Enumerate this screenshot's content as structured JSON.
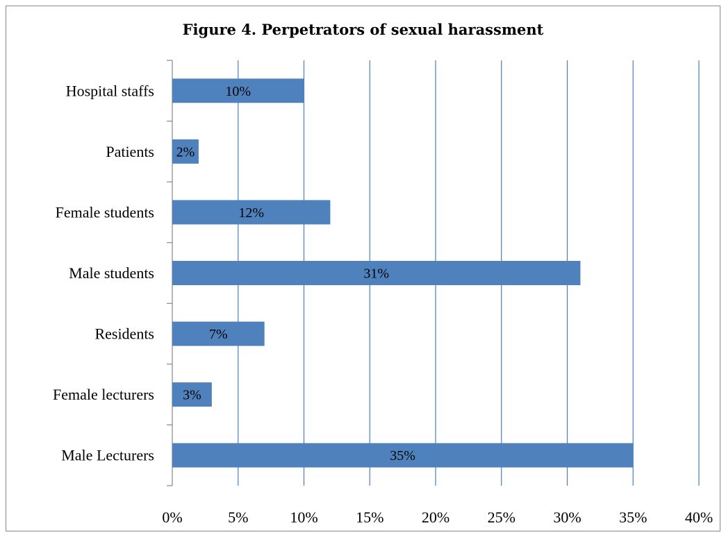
{
  "chart_data": {
    "type": "bar",
    "orientation": "horizontal",
    "title": "Figure 4. Perpetrators of sexual harassment",
    "xlabel": "",
    "ylabel": "",
    "categories": [
      "Hospital staffs",
      "Patients",
      "Female students",
      "Male students",
      "Residents",
      "Female lecturers",
      "Male Lecturers"
    ],
    "values": [
      10,
      2,
      12,
      31,
      7,
      3,
      35
    ],
    "data_labels": [
      "10%",
      "2%",
      "12%",
      "31%",
      "7%",
      "3%",
      "35%"
    ],
    "xlim": [
      0,
      40
    ],
    "x_ticks": [
      0,
      5,
      10,
      15,
      20,
      25,
      30,
      35,
      40
    ],
    "x_tick_labels": [
      "0%",
      "5%",
      "10%",
      "15%",
      "20%",
      "25%",
      "30%",
      "35%",
      "40%"
    ],
    "grid": "vertical",
    "legend": "none",
    "colors": {
      "bar": "#4f81bd",
      "grid": "#4a7ebb",
      "axis": "#868686"
    }
  }
}
